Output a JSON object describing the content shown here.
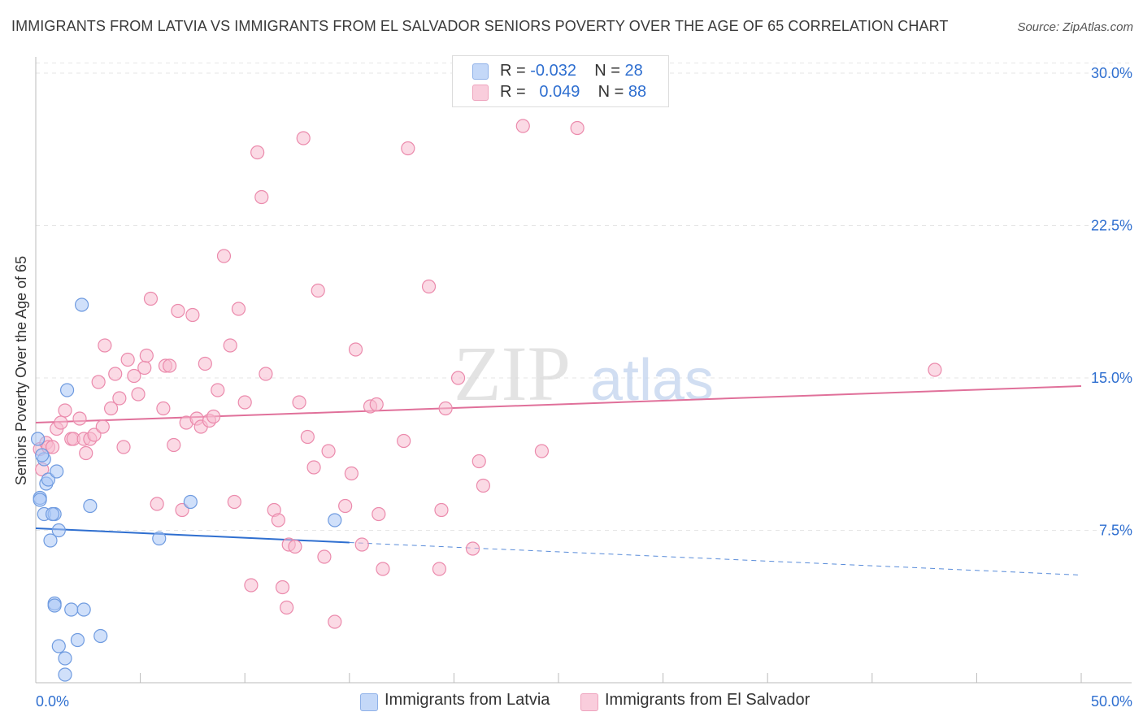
{
  "title": "IMMIGRANTS FROM LATVIA VS IMMIGRANTS FROM EL SALVADOR SENIORS POVERTY OVER THE AGE OF 65 CORRELATION CHART",
  "source": "Source: ZipAtlas.com",
  "watermark": {
    "zip": "ZIP",
    "atlas": "atlas"
  },
  "legend_top": [
    {
      "r_label": "R =",
      "r_value": "-0.032",
      "n_label": "N =",
      "n_value": "28"
    },
    {
      "r_label": "R =",
      "r_value": "0.049",
      "n_label": "N =",
      "n_value": "88"
    }
  ],
  "chart_data": {
    "type": "scatter",
    "title": "IMMIGRANTS FROM LATVIA VS IMMIGRANTS FROM EL SALVADOR SENIORS POVERTY OVER THE AGE OF 65 CORRELATION CHART",
    "xlabel": "",
    "ylabel": "Seniors Poverty Over the Age of 65",
    "xlim": [
      0,
      50
    ],
    "ylim": [
      0,
      30.8
    ],
    "x_tick_labels": [
      "0.0%",
      "50.0%"
    ],
    "y_ticks": [
      7.5,
      15.0,
      22.5,
      30.0
    ],
    "y_tick_labels": [
      "7.5%",
      "15.0%",
      "22.5%",
      "30.0%"
    ],
    "grid": true,
    "legend_position": "bottom",
    "series": [
      {
        "name": "Immigrants from Latvia",
        "color": "#a9c6f5",
        "stroke": "#6f9be0",
        "line_color": "#2f6fd0",
        "trend": {
          "x0": 0,
          "y0": 7.6,
          "x1": 15,
          "y1": 6.9,
          "dashed_to_x": 50,
          "dashed_to_y": 5.3
        },
        "points": [
          [
            0.1,
            12.0
          ],
          [
            0.2,
            9.1
          ],
          [
            0.2,
            9.0
          ],
          [
            0.4,
            11.0
          ],
          [
            0.5,
            9.8
          ],
          [
            0.4,
            8.3
          ],
          [
            0.6,
            10.0
          ],
          [
            0.9,
            8.3
          ],
          [
            1.0,
            10.4
          ],
          [
            1.1,
            7.5
          ],
          [
            0.7,
            7.0
          ],
          [
            0.9,
            3.9
          ],
          [
            0.9,
            3.8
          ],
          [
            1.1,
            1.8
          ],
          [
            1.4,
            1.2
          ],
          [
            1.4,
            0.4
          ],
          [
            1.7,
            3.6
          ],
          [
            2.0,
            2.1
          ],
          [
            2.3,
            3.6
          ],
          [
            2.6,
            8.7
          ],
          [
            3.1,
            2.3
          ],
          [
            1.5,
            14.4
          ],
          [
            2.2,
            18.6
          ],
          [
            5.9,
            7.1
          ],
          [
            7.4,
            8.9
          ],
          [
            14.3,
            8.0
          ],
          [
            0.3,
            11.2
          ],
          [
            0.8,
            8.3
          ]
        ]
      },
      {
        "name": "Immigrants from El Salvador",
        "color": "#f7bcd0",
        "stroke": "#eb8aac",
        "line_color": "#e0709a",
        "trend": {
          "x0": 0,
          "y0": 12.8,
          "x1": 50,
          "y1": 14.6
        },
        "points": [
          [
            0.2,
            11.5
          ],
          [
            0.3,
            10.5
          ],
          [
            0.5,
            11.8
          ],
          [
            0.6,
            11.6
          ],
          [
            0.8,
            11.6
          ],
          [
            1.0,
            12.5
          ],
          [
            1.2,
            12.8
          ],
          [
            1.4,
            13.4
          ],
          [
            1.7,
            12.0
          ],
          [
            1.8,
            12.0
          ],
          [
            2.1,
            13.0
          ],
          [
            2.3,
            12.0
          ],
          [
            2.4,
            11.3
          ],
          [
            2.6,
            12.0
          ],
          [
            2.8,
            12.2
          ],
          [
            3.0,
            14.8
          ],
          [
            3.2,
            12.6
          ],
          [
            3.3,
            16.6
          ],
          [
            3.6,
            13.5
          ],
          [
            3.8,
            15.2
          ],
          [
            4.0,
            14.0
          ],
          [
            4.2,
            11.6
          ],
          [
            4.4,
            15.9
          ],
          [
            4.7,
            15.1
          ],
          [
            4.9,
            14.2
          ],
          [
            5.2,
            15.5
          ],
          [
            5.3,
            16.1
          ],
          [
            5.5,
            18.9
          ],
          [
            5.8,
            8.8
          ],
          [
            6.1,
            13.5
          ],
          [
            6.2,
            15.6
          ],
          [
            6.4,
            15.6
          ],
          [
            6.6,
            11.7
          ],
          [
            6.8,
            18.3
          ],
          [
            7.0,
            8.5
          ],
          [
            7.2,
            12.8
          ],
          [
            7.5,
            18.1
          ],
          [
            7.7,
            13.0
          ],
          [
            7.9,
            12.6
          ],
          [
            8.1,
            15.7
          ],
          [
            8.3,
            12.9
          ],
          [
            8.5,
            13.1
          ],
          [
            8.7,
            14.4
          ],
          [
            9.0,
            21.0
          ],
          [
            9.3,
            16.6
          ],
          [
            9.5,
            8.9
          ],
          [
            9.7,
            18.4
          ],
          [
            10.0,
            13.8
          ],
          [
            10.3,
            4.8
          ],
          [
            10.6,
            26.1
          ],
          [
            10.8,
            23.9
          ],
          [
            11.0,
            15.2
          ],
          [
            11.4,
            8.5
          ],
          [
            11.6,
            8.0
          ],
          [
            11.8,
            4.7
          ],
          [
            12.0,
            3.7
          ],
          [
            12.1,
            6.8
          ],
          [
            12.4,
            6.7
          ],
          [
            12.6,
            13.8
          ],
          [
            12.8,
            26.8
          ],
          [
            13.0,
            12.1
          ],
          [
            13.3,
            10.6
          ],
          [
            13.5,
            19.3
          ],
          [
            13.8,
            6.2
          ],
          [
            14.0,
            11.4
          ],
          [
            14.3,
            3.0
          ],
          [
            14.8,
            8.7
          ],
          [
            15.1,
            10.3
          ],
          [
            15.3,
            16.4
          ],
          [
            15.6,
            6.8
          ],
          [
            16.0,
            13.6
          ],
          [
            16.3,
            13.7
          ],
          [
            16.4,
            8.3
          ],
          [
            16.6,
            5.6
          ],
          [
            17.6,
            11.9
          ],
          [
            17.8,
            26.3
          ],
          [
            18.8,
            19.5
          ],
          [
            19.3,
            5.6
          ],
          [
            19.4,
            8.5
          ],
          [
            19.6,
            13.5
          ],
          [
            20.2,
            15.0
          ],
          [
            20.9,
            6.6
          ],
          [
            21.2,
            10.9
          ],
          [
            21.4,
            9.7
          ],
          [
            23.3,
            27.4
          ],
          [
            24.2,
            11.4
          ],
          [
            25.9,
            27.3
          ],
          [
            43.0,
            15.4
          ]
        ]
      }
    ]
  }
}
